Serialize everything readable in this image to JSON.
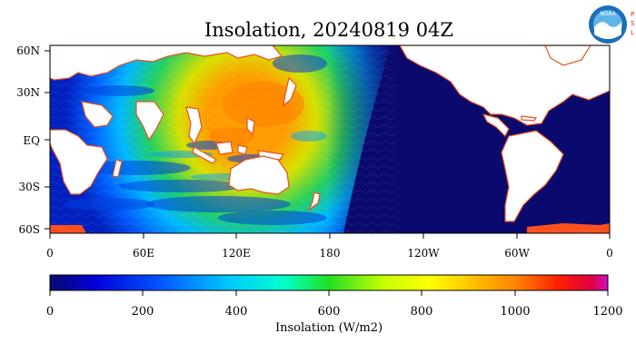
{
  "title": "Insolation, 20240819 04Z",
  "logo": {
    "noaa_text": "NOAA",
    "psl_letters": [
      "P",
      "S",
      "L"
    ],
    "colors": {
      "noaa_blue": "#1a6fb8",
      "noaa_light": "#5fb4e8",
      "psl_red": "#d22020"
    }
  },
  "map": {
    "lat_labels": [
      "60N",
      "30N",
      "EQ",
      "30S",
      "60S"
    ],
    "lon_labels": [
      "0",
      "60E",
      "120E",
      "180",
      "120W",
      "60W",
      "0"
    ],
    "lat_range": [
      -65,
      65
    ],
    "lon_range": [
      0,
      360
    ],
    "ocean_night_color": "#0a0a6e",
    "land_color": "#ffffff",
    "coast_color": "#e85020"
  },
  "colorbar": {
    "label": "Insolation (W/m2)",
    "ticks": [
      "0",
      "200",
      "400",
      "600",
      "800",
      "1000",
      "1200"
    ],
    "range": [
      0,
      1200
    ],
    "stops": [
      "#0a0a70",
      "#0000d8",
      "#0058ff",
      "#00c8ff",
      "#00ffcc",
      "#22e022",
      "#c8ff00",
      "#ffff00",
      "#ffc000",
      "#ff8000",
      "#ff2000",
      "#e00040",
      "#d010c0"
    ]
  }
}
